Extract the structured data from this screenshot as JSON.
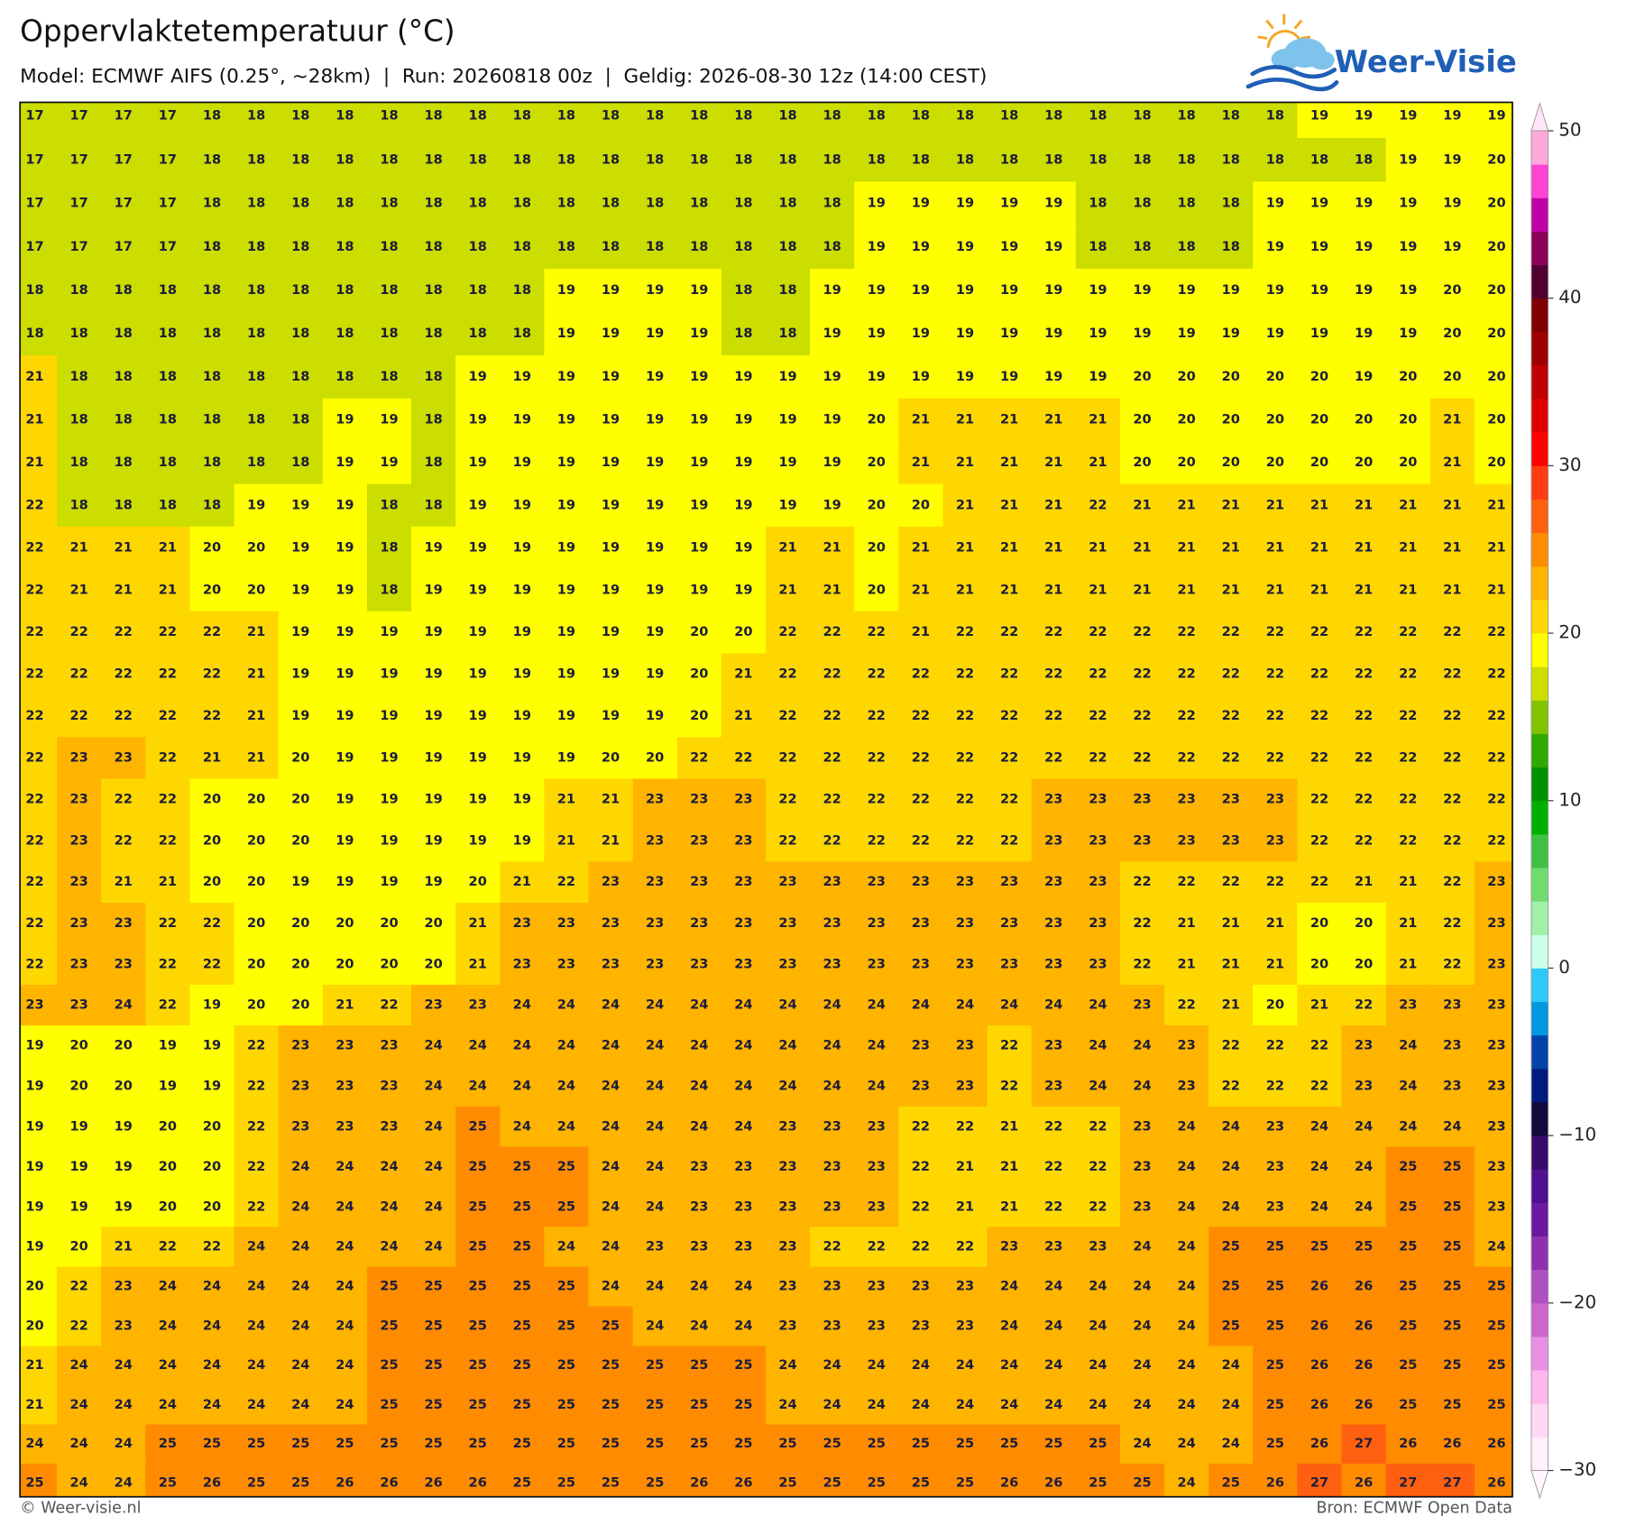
{
  "header": {
    "title": "Oppervlaktetemperatuur (°C)",
    "subtitle": "Model: ECMWF AIFS (0.25°, ~28km)  |  Run: 20260818 00z  |  Geldig: 2026-08-30 12z (14:00 CEST)"
  },
  "logo": {
    "text": "Weer-Visie"
  },
  "grid": {
    "rows": [
      [
        17,
        17,
        17,
        17,
        18,
        18,
        18,
        18,
        18,
        18,
        18,
        18,
        18,
        18,
        18,
        18,
        18,
        18,
        18,
        18,
        18,
        18,
        18,
        18,
        18,
        18,
        18,
        18,
        18,
        19,
        19,
        19,
        19,
        19
      ],
      [
        17,
        17,
        17,
        17,
        18,
        18,
        18,
        18,
        18,
        18,
        18,
        18,
        18,
        18,
        18,
        18,
        18,
        18,
        18,
        18,
        18,
        18,
        18,
        18,
        18,
        18,
        18,
        18,
        18,
        18,
        18,
        19,
        19,
        20
      ],
      [
        17,
        17,
        17,
        17,
        18,
        18,
        18,
        18,
        18,
        18,
        18,
        18,
        18,
        18,
        18,
        18,
        18,
        18,
        18,
        19,
        19,
        19,
        19,
        19,
        18,
        18,
        18,
        18,
        19,
        19,
        19,
        19,
        19,
        20
      ],
      [
        17,
        17,
        17,
        17,
        18,
        18,
        18,
        18,
        18,
        18,
        18,
        18,
        18,
        18,
        18,
        18,
        18,
        18,
        18,
        19,
        19,
        19,
        19,
        19,
        18,
        18,
        18,
        18,
        19,
        19,
        19,
        19,
        19,
        20
      ],
      [
        18,
        18,
        18,
        18,
        18,
        18,
        18,
        18,
        18,
        18,
        18,
        18,
        19,
        19,
        19,
        19,
        18,
        18,
        19,
        19,
        19,
        19,
        19,
        19,
        19,
        19,
        19,
        19,
        19,
        19,
        19,
        19,
        20,
        20
      ],
      [
        18,
        18,
        18,
        18,
        18,
        18,
        18,
        18,
        18,
        18,
        18,
        18,
        19,
        19,
        19,
        19,
        18,
        18,
        19,
        19,
        19,
        19,
        19,
        19,
        19,
        19,
        19,
        19,
        19,
        19,
        19,
        19,
        20,
        20
      ],
      [
        21,
        18,
        18,
        18,
        18,
        18,
        18,
        18,
        18,
        18,
        19,
        19,
        19,
        19,
        19,
        19,
        19,
        19,
        19,
        19,
        19,
        19,
        19,
        19,
        19,
        20,
        20,
        20,
        20,
        20,
        19,
        20,
        20,
        20
      ],
      [
        21,
        18,
        18,
        18,
        18,
        18,
        18,
        19,
        19,
        18,
        19,
        19,
        19,
        19,
        19,
        19,
        19,
        19,
        19,
        20,
        21,
        21,
        21,
        21,
        21,
        20,
        20,
        20,
        20,
        20,
        20,
        20,
        21,
        20
      ],
      [
        21,
        18,
        18,
        18,
        18,
        18,
        18,
        19,
        19,
        18,
        19,
        19,
        19,
        19,
        19,
        19,
        19,
        19,
        19,
        20,
        21,
        21,
        21,
        21,
        21,
        20,
        20,
        20,
        20,
        20,
        20,
        20,
        21,
        20
      ],
      [
        22,
        18,
        18,
        18,
        18,
        19,
        19,
        19,
        18,
        18,
        19,
        19,
        19,
        19,
        19,
        19,
        19,
        19,
        19,
        20,
        20,
        21,
        21,
        21,
        22,
        21,
        21,
        21,
        21,
        21,
        21,
        21,
        21,
        21
      ],
      [
        22,
        21,
        21,
        21,
        20,
        20,
        19,
        19,
        18,
        19,
        19,
        19,
        19,
        19,
        19,
        19,
        19,
        21,
        21,
        20,
        21,
        21,
        21,
        21,
        21,
        21,
        21,
        21,
        21,
        21,
        21,
        21,
        21,
        21
      ],
      [
        22,
        21,
        21,
        21,
        20,
        20,
        19,
        19,
        18,
        19,
        19,
        19,
        19,
        19,
        19,
        19,
        19,
        21,
        21,
        20,
        21,
        21,
        21,
        21,
        21,
        21,
        21,
        21,
        21,
        21,
        21,
        21,
        21,
        21
      ],
      [
        22,
        22,
        22,
        22,
        22,
        21,
        19,
        19,
        19,
        19,
        19,
        19,
        19,
        19,
        19,
        20,
        20,
        22,
        22,
        22,
        21,
        22,
        22,
        22,
        22,
        22,
        22,
        22,
        22,
        22,
        22,
        22,
        22,
        22
      ],
      [
        22,
        22,
        22,
        22,
        22,
        21,
        19,
        19,
        19,
        19,
        19,
        19,
        19,
        19,
        19,
        20,
        21,
        22,
        22,
        22,
        22,
        22,
        22,
        22,
        22,
        22,
        22,
        22,
        22,
        22,
        22,
        22,
        22,
        22
      ],
      [
        22,
        22,
        22,
        22,
        22,
        21,
        19,
        19,
        19,
        19,
        19,
        19,
        19,
        19,
        19,
        20,
        21,
        22,
        22,
        22,
        22,
        22,
        22,
        22,
        22,
        22,
        22,
        22,
        22,
        22,
        22,
        22,
        22,
        22
      ],
      [
        22,
        23,
        23,
        22,
        21,
        21,
        20,
        19,
        19,
        19,
        19,
        19,
        19,
        20,
        20,
        22,
        22,
        22,
        22,
        22,
        22,
        22,
        22,
        22,
        22,
        22,
        22,
        22,
        22,
        22,
        22,
        22,
        22,
        22
      ],
      [
        22,
        23,
        22,
        22,
        20,
        20,
        20,
        19,
        19,
        19,
        19,
        19,
        21,
        21,
        23,
        23,
        23,
        22,
        22,
        22,
        22,
        22,
        22,
        23,
        23,
        23,
        23,
        23,
        23,
        22,
        22,
        22,
        22,
        22
      ],
      [
        22,
        23,
        22,
        22,
        20,
        20,
        20,
        19,
        19,
        19,
        19,
        19,
        21,
        21,
        23,
        23,
        23,
        22,
        22,
        22,
        22,
        22,
        22,
        23,
        23,
        23,
        23,
        23,
        23,
        22,
        22,
        22,
        22,
        22
      ],
      [
        22,
        23,
        21,
        21,
        20,
        20,
        19,
        19,
        19,
        19,
        20,
        21,
        22,
        23,
        23,
        23,
        23,
        23,
        23,
        23,
        23,
        23,
        23,
        23,
        23,
        22,
        22,
        22,
        22,
        22,
        21,
        21,
        22,
        23
      ],
      [
        22,
        23,
        23,
        22,
        22,
        20,
        20,
        20,
        20,
        20,
        21,
        23,
        23,
        23,
        23,
        23,
        23,
        23,
        23,
        23,
        23,
        23,
        23,
        23,
        23,
        22,
        21,
        21,
        21,
        20,
        20,
        21,
        22,
        23
      ],
      [
        22,
        23,
        23,
        22,
        22,
        20,
        20,
        20,
        20,
        20,
        21,
        23,
        23,
        23,
        23,
        23,
        23,
        23,
        23,
        23,
        23,
        23,
        23,
        23,
        23,
        22,
        21,
        21,
        21,
        20,
        20,
        21,
        22,
        23
      ],
      [
        23,
        23,
        24,
        22,
        19,
        20,
        20,
        21,
        22,
        23,
        23,
        24,
        24,
        24,
        24,
        24,
        24,
        24,
        24,
        24,
        24,
        24,
        24,
        24,
        24,
        23,
        22,
        21,
        20,
        21,
        22,
        23,
        23,
        23
      ],
      [
        19,
        20,
        20,
        19,
        19,
        22,
        23,
        23,
        23,
        24,
        24,
        24,
        24,
        24,
        24,
        24,
        24,
        24,
        24,
        24,
        23,
        23,
        22,
        23,
        24,
        24,
        23,
        22,
        22,
        22,
        23,
        24,
        23,
        23
      ],
      [
        19,
        20,
        20,
        19,
        19,
        22,
        23,
        23,
        23,
        24,
        24,
        24,
        24,
        24,
        24,
        24,
        24,
        24,
        24,
        24,
        23,
        23,
        22,
        23,
        24,
        24,
        23,
        22,
        22,
        22,
        23,
        24,
        23,
        23
      ],
      [
        19,
        19,
        19,
        20,
        20,
        22,
        23,
        23,
        23,
        24,
        25,
        24,
        24,
        24,
        24,
        24,
        24,
        23,
        23,
        23,
        22,
        22,
        21,
        22,
        22,
        23,
        24,
        24,
        23,
        24,
        24,
        24,
        24,
        23
      ],
      [
        19,
        19,
        19,
        20,
        20,
        22,
        24,
        24,
        24,
        24,
        25,
        25,
        25,
        24,
        24,
        23,
        23,
        23,
        23,
        23,
        22,
        21,
        21,
        22,
        22,
        23,
        24,
        24,
        23,
        24,
        24,
        25,
        25,
        23
      ],
      [
        19,
        19,
        19,
        20,
        20,
        22,
        24,
        24,
        24,
        24,
        25,
        25,
        25,
        24,
        24,
        23,
        23,
        23,
        23,
        23,
        22,
        21,
        21,
        22,
        22,
        23,
        24,
        24,
        23,
        24,
        24,
        25,
        25,
        23
      ],
      [
        19,
        20,
        21,
        22,
        22,
        24,
        24,
        24,
        24,
        24,
        25,
        25,
        24,
        24,
        23,
        23,
        23,
        23,
        22,
        22,
        22,
        22,
        23,
        23,
        23,
        24,
        24,
        25,
        25,
        25,
        25,
        25,
        25,
        24
      ],
      [
        20,
        22,
        23,
        24,
        24,
        24,
        24,
        24,
        25,
        25,
        25,
        25,
        25,
        24,
        24,
        24,
        24,
        23,
        23,
        23,
        23,
        23,
        24,
        24,
        24,
        24,
        24,
        25,
        25,
        26,
        26,
        25,
        25,
        25
      ],
      [
        20,
        22,
        23,
        24,
        24,
        24,
        24,
        24,
        25,
        25,
        25,
        25,
        25,
        25,
        24,
        24,
        24,
        23,
        23,
        23,
        23,
        23,
        24,
        24,
        24,
        24,
        24,
        25,
        25,
        26,
        26,
        25,
        25,
        25
      ],
      [
        21,
        24,
        24,
        24,
        24,
        24,
        24,
        24,
        25,
        25,
        25,
        25,
        25,
        25,
        25,
        25,
        25,
        24,
        24,
        24,
        24,
        24,
        24,
        24,
        24,
        24,
        24,
        24,
        25,
        26,
        26,
        25,
        25,
        25
      ],
      [
        21,
        24,
        24,
        24,
        24,
        24,
        24,
        24,
        25,
        25,
        25,
        25,
        25,
        25,
        25,
        25,
        25,
        24,
        24,
        24,
        24,
        24,
        24,
        24,
        24,
        24,
        24,
        24,
        25,
        26,
        26,
        25,
        25,
        25
      ],
      [
        24,
        24,
        24,
        25,
        25,
        25,
        25,
        25,
        25,
        25,
        25,
        25,
        25,
        25,
        25,
        25,
        25,
        25,
        25,
        25,
        25,
        25,
        25,
        25,
        25,
        24,
        24,
        24,
        25,
        26,
        27,
        26,
        26,
        26
      ],
      [
        25,
        24,
        24,
        25,
        26,
        25,
        25,
        26,
        26,
        26,
        26,
        25,
        25,
        25,
        25,
        26,
        26,
        25,
        25,
        25,
        25,
        25,
        26,
        26,
        25,
        25,
        24,
        25,
        26,
        27,
        26,
        27,
        27,
        26
      ]
    ]
  },
  "colorbar": {
    "lim": [
      -30,
      50
    ],
    "ticks": [
      50,
      40,
      30,
      20,
      10,
      0,
      {
        "value": -10,
        "label": "−10"
      },
      {
        "value": -20,
        "label": "−20"
      },
      {
        "value": -30,
        "label": "−30"
      }
    ],
    "colors": [
      "#fff0fb",
      "#ffd8f6",
      "#ffb8ee",
      "#e890e4",
      "#cc66cc",
      "#b050c0",
      "#9030b0",
      "#6a1a9e",
      "#501090",
      "#380a6e",
      "#150a3d",
      "#001a80",
      "#0044a8",
      "#0098e0",
      "#30c8f8",
      "#ccffe8",
      "#a0f0a8",
      "#70dc70",
      "#40c040",
      "#00b000",
      "#009000",
      "#30a800",
      "#80c400",
      "#ccdd00",
      "#ffff00",
      "#ffd700",
      "#ffb400",
      "#ff8c00",
      "#ff6010",
      "#ff3c10",
      "#ff0000",
      "#e00000",
      "#c00000",
      "#a00000",
      "#800000",
      "#500030",
      "#8b005a",
      "#c000a8",
      "#ff44d4",
      "#ffa8dc"
    ]
  },
  "footer": {
    "left": "© Weer-visie.nl",
    "right": "Bron: ECMWF Open Data"
  }
}
